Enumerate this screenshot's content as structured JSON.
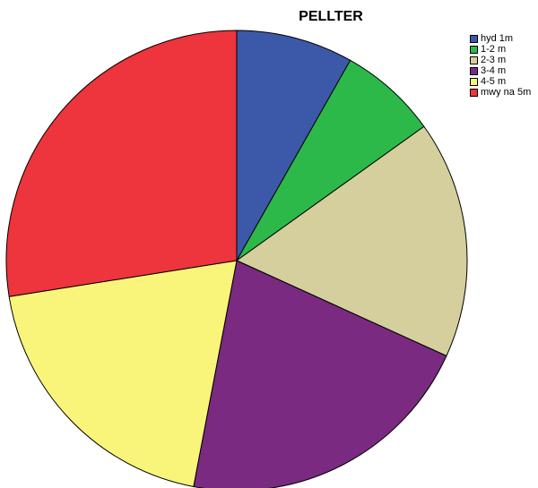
{
  "chart_data": {
    "type": "pie",
    "title": "PELLTER",
    "legend_position": "top-right",
    "slices": [
      {
        "label": "hyd 1m",
        "value": 8.2,
        "color": "#3c58a8"
      },
      {
        "label": "1-2 m",
        "value": 6.9,
        "color": "#2db84a"
      },
      {
        "label": "2-3 m",
        "value": 16.7,
        "color": "#d4cf9c"
      },
      {
        "label": "3-4 m",
        "value": 21.2,
        "color": "#7a2a80"
      },
      {
        "label": "4-5 m",
        "value": 19.5,
        "color": "#f8f57a"
      },
      {
        "label": "mwy na 5m",
        "value": 27.5,
        "color": "#ee343c"
      }
    ]
  }
}
